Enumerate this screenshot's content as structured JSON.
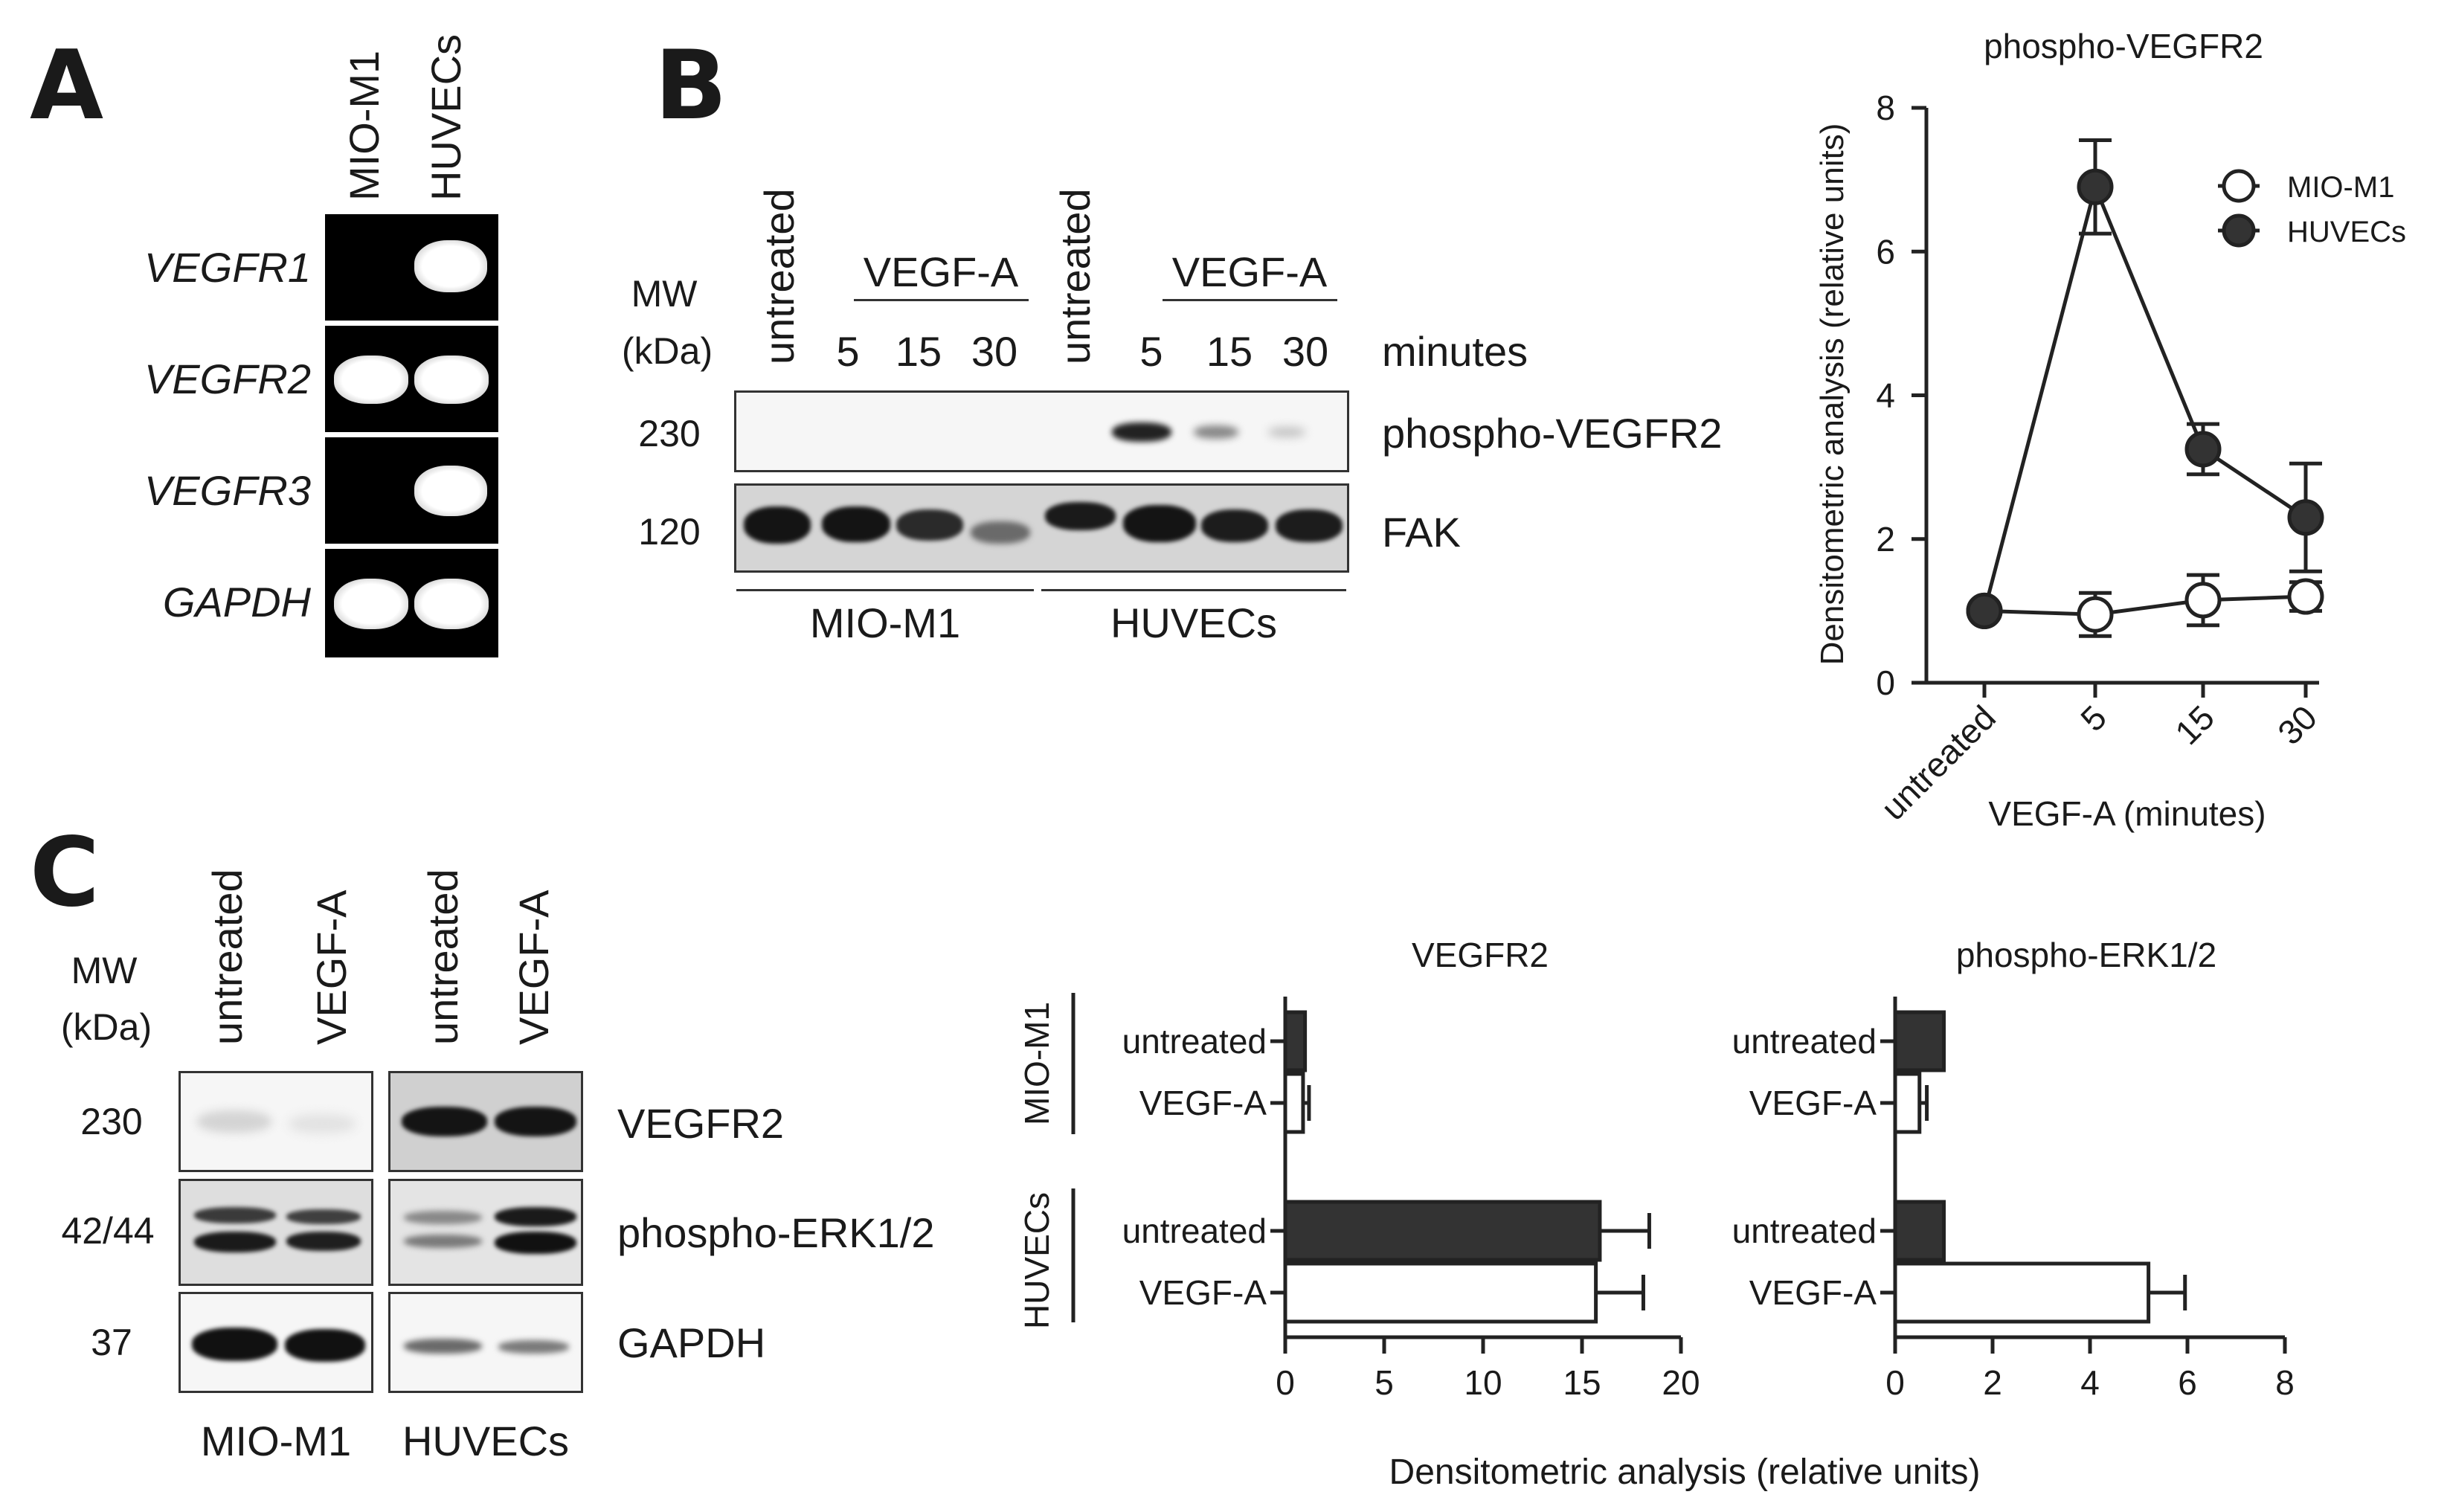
{
  "panels": {
    "a": "A",
    "b": "B",
    "c": "C"
  },
  "panel_a": {
    "lane_labels": [
      "MIO-M1",
      "HUVECs"
    ],
    "genes": [
      "VEGFR1",
      "VEGFR2",
      "VEGFR3",
      "GAPDH"
    ]
  },
  "panel_b_blot": {
    "mw_label_1": "MW",
    "mw_label_2": "(kDa)",
    "untreated_1": "untreated",
    "untreated_2": "untreated",
    "vegf_1": "VEGF-A",
    "vegf_2": "VEGF-A",
    "times_1": [
      "5",
      "15",
      "30"
    ],
    "times_2": [
      "5",
      "15",
      "30"
    ],
    "minutes": "minutes",
    "mw_values": [
      "230",
      "120"
    ],
    "targets": [
      "phospho-VEGFR2",
      "FAK"
    ],
    "cell_lines": [
      "MIO-M1",
      "HUVECs"
    ]
  },
  "panel_c_blot": {
    "mw_label_1": "MW",
    "mw_label_2": "(kDa)",
    "lanes": [
      "untreated",
      "VEGF-A",
      "untreated",
      "VEGF-A"
    ],
    "mw_values": [
      "230",
      "42/44",
      "37"
    ],
    "targets": [
      "VEGFR2",
      "phospho-ERK1/2",
      "GAPDH"
    ],
    "cell_lines": [
      "MIO-M1",
      "HUVECs"
    ]
  },
  "shared_xlabel": "Densitometric analysis (relative units)",
  "chart_data": [
    {
      "type": "line",
      "title": "phospho-VEGFR2",
      "xlabel": "VEGF-A (minutes)",
      "ylabel": "Densitometric analysis (relative units)",
      "categories": [
        "untreated",
        "5",
        "15",
        "30"
      ],
      "ylim": [
        0,
        8
      ],
      "yticks": [
        "0",
        "2",
        "4",
        "6",
        "8"
      ],
      "legend_position": "top-right",
      "series": [
        {
          "name": "MIO-M1",
          "values": [
            1.0,
            0.95,
            1.15,
            1.2
          ],
          "errors": [
            0.0,
            0.3,
            0.35,
            0.2
          ],
          "fill": "#ffffff"
        },
        {
          "name": "HUVECs",
          "values": [
            1.0,
            6.9,
            3.25,
            2.3
          ],
          "errors": [
            0.0,
            0.65,
            0.35,
            0.75
          ],
          "fill": "#333333"
        }
      ]
    },
    {
      "type": "bar",
      "orientation": "horizontal",
      "title": "VEGFR2",
      "groups": [
        "MIO-M1",
        "HUVECs"
      ],
      "categories": [
        "untreated",
        "VEGF-A",
        "untreated",
        "VEGF-A"
      ],
      "values": [
        1.0,
        0.9,
        15.9,
        15.7
      ],
      "errors": [
        0.0,
        0.3,
        2.5,
        2.4
      ],
      "colors": [
        "#333333",
        "#ffffff",
        "#333333",
        "#ffffff"
      ],
      "xlim": [
        0,
        20
      ],
      "xticks": [
        "0",
        "5",
        "10",
        "15",
        "20"
      ]
    },
    {
      "type": "bar",
      "orientation": "horizontal",
      "title": "phospho-ERK1/2",
      "groups": [
        "MIO-M1",
        "HUVECs"
      ],
      "categories": [
        "untreated",
        "VEGF-A",
        "untreated",
        "VEGF-A"
      ],
      "values": [
        1.0,
        0.5,
        1.0,
        5.2
      ],
      "errors": [
        0.0,
        0.15,
        0.0,
        0.75
      ],
      "colors": [
        "#333333",
        "#ffffff",
        "#333333",
        "#ffffff"
      ],
      "xlim": [
        0,
        8
      ],
      "xticks": [
        "0",
        "2",
        "4",
        "6",
        "8"
      ]
    }
  ]
}
